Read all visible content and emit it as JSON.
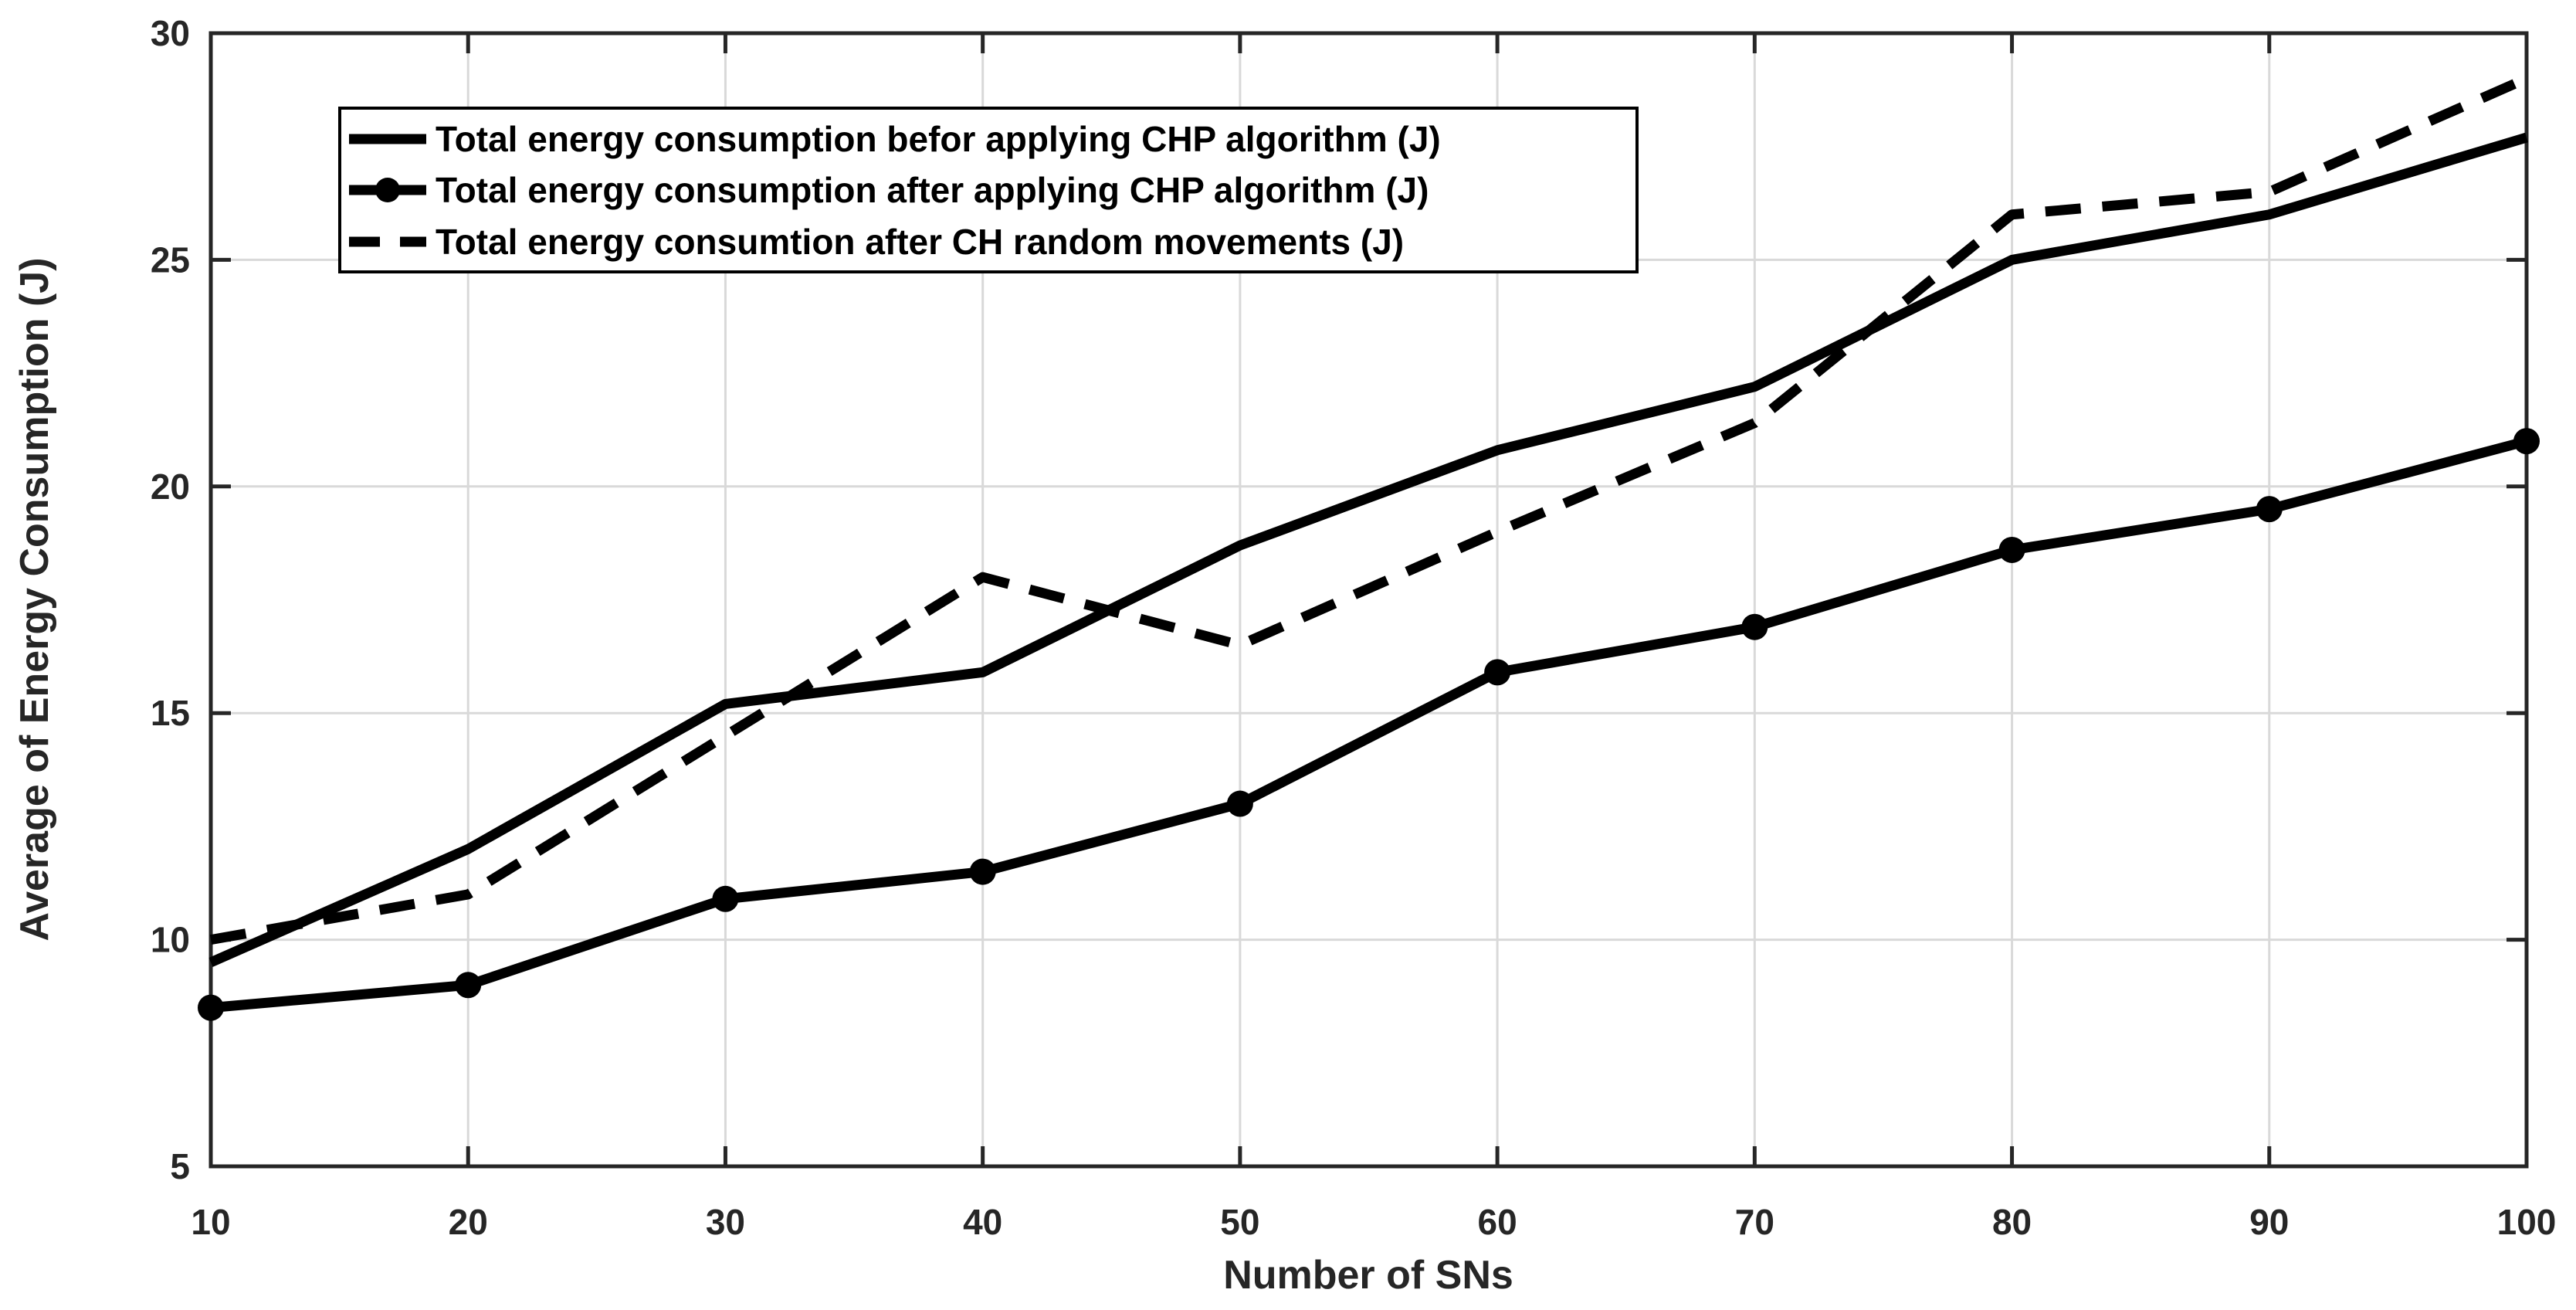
{
  "chart_data": {
    "type": "line",
    "title": "",
    "xlabel": "Number of SNs",
    "ylabel": "Average of Energy Consumption (J)",
    "xlim": [
      10,
      100
    ],
    "ylim": [
      5,
      30
    ],
    "xticks": [
      10,
      20,
      30,
      40,
      50,
      60,
      70,
      80,
      90,
      100
    ],
    "yticks": [
      5,
      10,
      15,
      20,
      25,
      30
    ],
    "grid": true,
    "legend_position": "top-left-inside",
    "x": [
      10,
      20,
      30,
      40,
      50,
      60,
      70,
      80,
      90,
      100
    ],
    "series": [
      {
        "name": "Total energy consumption befor applying CHP algorithm (J)",
        "line_style": "solid",
        "marker": "none",
        "color": "#000000",
        "values": [
          9.5,
          12,
          15.2,
          15.9,
          18.7,
          20.8,
          22.2,
          25,
          26,
          27.7
        ]
      },
      {
        "name": "Total energy consumption after applying CHP algorithm (J)",
        "line_style": "solid",
        "marker": "filled-circle",
        "color": "#000000",
        "values": [
          8.5,
          9,
          10.9,
          11.5,
          13,
          15.9,
          16.9,
          18.6,
          19.5,
          21
        ]
      },
      {
        "name": "Total energy consumtion after CH random movements (J)",
        "line_style": "dashed",
        "marker": "none",
        "color": "#000000",
        "values": [
          10,
          11,
          14.5,
          18,
          16.5,
          19,
          21.4,
          26,
          26.5,
          29
        ]
      }
    ],
    "colors": {
      "grid": "#d9d9d9",
      "axis": "#262626",
      "line": "#000000",
      "background": "#ffffff",
      "legend_background": "#ffffff"
    }
  }
}
